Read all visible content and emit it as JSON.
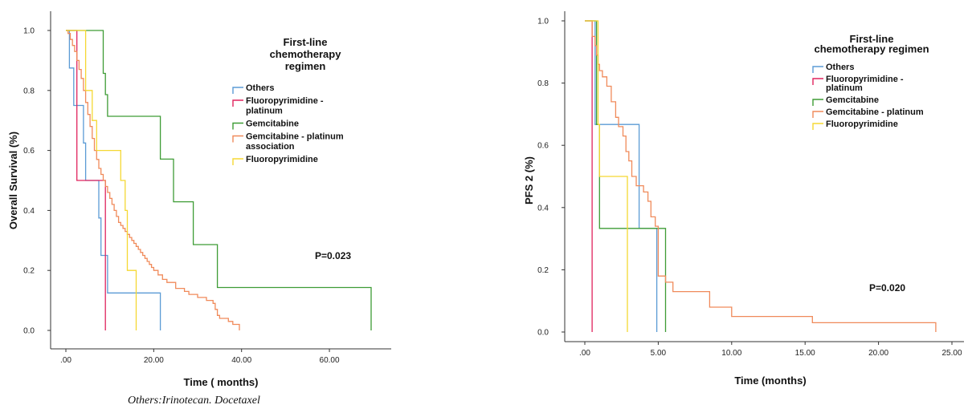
{
  "caption": "Others:Irinotecan. Docetaxel",
  "chart_data": [
    {
      "type": "line",
      "step": true,
      "ylabel": "Overall Survival (%)",
      "xlabel": "Time ( months)",
      "xlim": [
        -3,
        70
      ],
      "ylim": [
        -0.03,
        1.06
      ],
      "xticks": [
        0,
        20,
        40,
        60
      ],
      "xtick_labels": [
        ".00",
        "20.00",
        "40.00",
        "60.00"
      ],
      "yticks": [
        0,
        0.2,
        0.4,
        0.6,
        0.8,
        1.0
      ],
      "ytick_labels": [
        "0.0",
        "0.2",
        "0.4",
        "0.6",
        "0.8",
        "1.0"
      ],
      "legend": {
        "title_lines": [
          "First-line",
          "chemotherapy",
          "regimen"
        ],
        "position": "upper-right"
      },
      "annotation": "P=0.023",
      "series": [
        {
          "name_lines": [
            "Others"
          ],
          "color": "#5b9bd5",
          "x": [
            0,
            0.8,
            0.8,
            1.8,
            1.8,
            4,
            4,
            4.5,
            4.5,
            7.5,
            7.5,
            8,
            8,
            9.5,
            9.5,
            21.5,
            21.5
          ],
          "y": [
            1.0,
            1.0,
            0.875,
            0.875,
            0.75,
            0.75,
            0.625,
            0.625,
            0.5,
            0.5,
            0.375,
            0.375,
            0.25,
            0.25,
            0.125,
            0.125,
            0.0
          ]
        },
        {
          "name_lines": [
            "Fluoropyrimidine -",
            "platinum"
          ],
          "color": "#e0245e",
          "x": [
            0,
            2.5,
            2.5,
            9,
            9
          ],
          "y": [
            1.0,
            1.0,
            0.5,
            0.5,
            0.0
          ]
        },
        {
          "name_lines": [
            "Gemcitabine"
          ],
          "color": "#3e9c35",
          "x": [
            0,
            8.5,
            8.5,
            9,
            9,
            9.5,
            9.5,
            21.5,
            21.5,
            24.5,
            24.5,
            29,
            29,
            34.5,
            34.5,
            69.5,
            69.5
          ],
          "y": [
            1.0,
            1.0,
            0.857,
            0.857,
            0.786,
            0.786,
            0.714,
            0.714,
            0.571,
            0.571,
            0.429,
            0.429,
            0.286,
            0.286,
            0.143,
            0.143,
            0.0
          ]
        },
        {
          "name_lines": [
            "Gemcitabine - platinum",
            "association"
          ],
          "color": "#f08a5a",
          "x": [
            0,
            0.5,
            0.5,
            1,
            1,
            1.5,
            1.5,
            2,
            2,
            2.5,
            2.5,
            3,
            3,
            3.5,
            3.5,
            4,
            4,
            4.5,
            4.5,
            5,
            5,
            5.5,
            5.5,
            6,
            6,
            6.5,
            6.5,
            7,
            7,
            7.5,
            7.5,
            8,
            8,
            8.5,
            8.5,
            9,
            9,
            9.5,
            9.5,
            10,
            10,
            10.5,
            10.5,
            11,
            11,
            11.5,
            11.5,
            12,
            12,
            12.5,
            12.5,
            13,
            13,
            13.5,
            13.5,
            14,
            14,
            14.5,
            14.5,
            15,
            15,
            15.5,
            15.5,
            16,
            16,
            16.5,
            16.5,
            17,
            17,
            17.5,
            17.5,
            18,
            18,
            18.5,
            18.5,
            19,
            19,
            19.5,
            19.5,
            20,
            20,
            21,
            21,
            22,
            22,
            23,
            23,
            25,
            25,
            27,
            27,
            28,
            28,
            30,
            30,
            32,
            32,
            33.5,
            33.5,
            34,
            34,
            34.5,
            34.5,
            35,
            35,
            37,
            37,
            38,
            38,
            39.5,
            39.5
          ],
          "y": [
            1.0,
            1.0,
            0.99,
            0.99,
            0.97,
            0.97,
            0.95,
            0.95,
            0.93,
            0.93,
            0.9,
            0.9,
            0.87,
            0.87,
            0.84,
            0.84,
            0.8,
            0.8,
            0.76,
            0.76,
            0.72,
            0.72,
            0.68,
            0.68,
            0.64,
            0.64,
            0.6,
            0.6,
            0.57,
            0.57,
            0.54,
            0.54,
            0.52,
            0.52,
            0.5,
            0.5,
            0.48,
            0.48,
            0.46,
            0.46,
            0.44,
            0.44,
            0.42,
            0.42,
            0.4,
            0.4,
            0.38,
            0.38,
            0.36,
            0.36,
            0.35,
            0.35,
            0.34,
            0.34,
            0.33,
            0.33,
            0.32,
            0.32,
            0.31,
            0.31,
            0.3,
            0.3,
            0.29,
            0.29,
            0.28,
            0.28,
            0.27,
            0.27,
            0.26,
            0.26,
            0.25,
            0.25,
            0.24,
            0.24,
            0.23,
            0.23,
            0.22,
            0.22,
            0.21,
            0.21,
            0.2,
            0.2,
            0.185,
            0.185,
            0.17,
            0.17,
            0.16,
            0.16,
            0.14,
            0.14,
            0.13,
            0.13,
            0.12,
            0.12,
            0.11,
            0.11,
            0.1,
            0.1,
            0.09,
            0.09,
            0.07,
            0.07,
            0.05,
            0.05,
            0.04,
            0.04,
            0.03,
            0.03,
            0.02,
            0.02,
            0.0
          ]
        },
        {
          "name_lines": [
            "Fluoropyrimidine"
          ],
          "color": "#f5d833",
          "x": [
            0,
            4.5,
            4.5,
            6,
            6,
            7,
            7,
            12.5,
            12.5,
            13.5,
            13.5,
            14,
            14,
            16,
            16
          ],
          "y": [
            1.0,
            1.0,
            0.8,
            0.8,
            0.7,
            0.7,
            0.6,
            0.6,
            0.5,
            0.5,
            0.4,
            0.4,
            0.2,
            0.2,
            0.0
          ]
        }
      ]
    },
    {
      "type": "line",
      "step": true,
      "ylabel": "PFS 2 (%)",
      "xlabel": "Time (months)",
      "xlim": [
        -1.2,
        25
      ],
      "ylim": [
        -0.03,
        1.06
      ],
      "xticks": [
        0,
        5,
        10,
        15,
        20,
        25
      ],
      "xtick_labels": [
        ".00",
        "5.00",
        "10.00",
        "15.00",
        "20.00",
        "25.00"
      ],
      "yticks": [
        0,
        0.2,
        0.4,
        0.6,
        0.8,
        1.0
      ],
      "ytick_labels": [
        "0.0",
        "0.2",
        "0.4",
        "0.6",
        "0.8",
        "1.0"
      ],
      "legend": {
        "title_lines": [
          "First-line",
          "chemotherapy regimen"
        ],
        "position": "upper-right"
      },
      "annotation": "P=0.020",
      "series": [
        {
          "name_lines": [
            "Others"
          ],
          "color": "#5b9bd5",
          "x": [
            0,
            0.7,
            0.7,
            3.7,
            3.7,
            4.9,
            4.9
          ],
          "y": [
            1.0,
            1.0,
            0.667,
            0.667,
            0.333,
            0.333,
            0.0
          ]
        },
        {
          "name_lines": [
            "Fluoropyrimidine -",
            "platinum"
          ],
          "color": "#e0245e",
          "x": [
            0,
            0.5,
            0.5
          ],
          "y": [
            1.0,
            1.0,
            0.0
          ]
        },
        {
          "name_lines": [
            "Gemcitabine"
          ],
          "color": "#3e9c35",
          "x": [
            0,
            0.8,
            0.8,
            1,
            1,
            5.5,
            5.5
          ],
          "y": [
            1.0,
            1.0,
            0.667,
            0.667,
            0.333,
            0.333,
            0.0
          ]
        },
        {
          "name_lines": [
            "Gemcitabine - platinum"
          ],
          "color": "#f08a5a",
          "x": [
            0,
            0.5,
            0.5,
            0.7,
            0.7,
            0.8,
            0.8,
            0.9,
            0.9,
            1,
            1,
            1.2,
            1.2,
            1.5,
            1.5,
            1.8,
            1.8,
            2.1,
            2.1,
            2.3,
            2.3,
            2.6,
            2.6,
            2.8,
            2.8,
            3,
            3,
            3.2,
            3.2,
            3.5,
            3.5,
            4,
            4,
            4.3,
            4.3,
            4.5,
            4.5,
            4.8,
            4.8,
            5,
            5,
            5.5,
            5.5,
            6,
            6,
            8.5,
            8.5,
            10,
            10,
            15.5,
            15.5,
            23.9,
            23.9
          ],
          "y": [
            1.0,
            1.0,
            0.95,
            0.95,
            0.92,
            0.92,
            0.89,
            0.89,
            0.86,
            0.86,
            0.84,
            0.84,
            0.82,
            0.82,
            0.79,
            0.79,
            0.74,
            0.74,
            0.69,
            0.69,
            0.66,
            0.66,
            0.63,
            0.63,
            0.58,
            0.58,
            0.55,
            0.55,
            0.5,
            0.5,
            0.47,
            0.47,
            0.45,
            0.45,
            0.42,
            0.42,
            0.37,
            0.37,
            0.34,
            0.34,
            0.18,
            0.18,
            0.16,
            0.16,
            0.13,
            0.13,
            0.08,
            0.08,
            0.05,
            0.05,
            0.03,
            0.03,
            0.0
          ]
        },
        {
          "name_lines": [
            "Fluoropyrimidine"
          ],
          "color": "#f5d833",
          "x": [
            0,
            0.9,
            0.9,
            1,
            1,
            2.9,
            2.9
          ],
          "y": [
            1.0,
            1.0,
            0.667,
            0.667,
            0.5,
            0.5,
            0.0
          ]
        }
      ]
    }
  ]
}
